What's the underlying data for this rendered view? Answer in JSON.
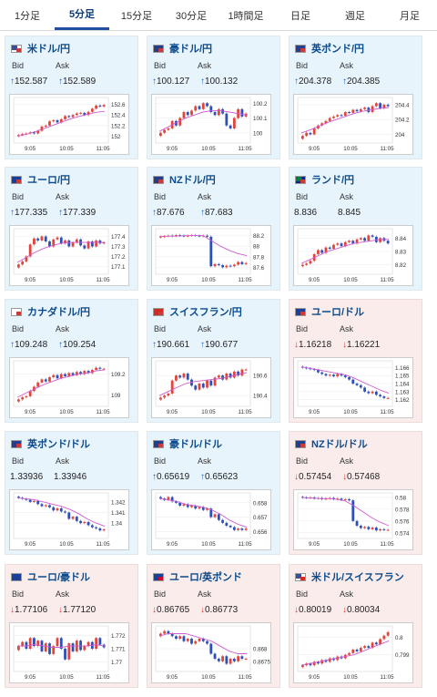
{
  "tabs": [
    "1分足",
    "5分足",
    "15分足",
    "30分足",
    "1時間足",
    "日足",
    "週足",
    "月足"
  ],
  "active_tab": 1,
  "colors": {
    "up_arrow": "#1f5fc4",
    "down_arrow": "#d43a3a",
    "bull_candle": "#e0453b",
    "bear_candle": "#2d4fb8",
    "moving_average": "#d05cd0",
    "pair_title": "#0b4a8b"
  },
  "bid_label": "Bid",
  "ask_label": "Ask",
  "cards": [
    {
      "pair": "米ドル/円",
      "flags": [
        "usa",
        "japan"
      ],
      "dir": "up",
      "arrow": "↑",
      "bid": "152.587",
      "ask": "152.589",
      "chart_data": {
        "type": "candlestick",
        "x_ticks": [
          "9:05",
          "10:05",
          "11:05"
        ],
        "y_ticks": [
          "152.6",
          "152.4",
          "152.2",
          "152"
        ],
        "ylim": [
          151.92,
          152.68
        ],
        "close": [
          152.02,
          152.04,
          152.05,
          152.07,
          152.05,
          152.1,
          152.18,
          152.2,
          152.28,
          152.3,
          152.26,
          152.32,
          152.38,
          152.36,
          152.4,
          152.43,
          152.44,
          152.4,
          152.46,
          152.52,
          152.58,
          152.56,
          152.59
        ],
        "ma": [
          152.0,
          152.03,
          152.08,
          152.14,
          152.2,
          152.26,
          152.32,
          152.37,
          152.41,
          152.45,
          152.47
        ]
      }
    },
    {
      "pair": "豪ドル/円",
      "flags": [
        "australia",
        "japan"
      ],
      "dir": "up",
      "arrow": "↑",
      "bid": "100.127",
      "ask": "100.132",
      "chart_data": {
        "type": "candlestick",
        "x_ticks": [
          "9:05",
          "10:05",
          "11:05"
        ],
        "y_ticks": [
          "100.2",
          "100.1",
          "100"
        ],
        "ylim": [
          99.95,
          100.22
        ],
        "close": [
          100.0,
          100.02,
          100.03,
          100.08,
          100.05,
          100.1,
          100.14,
          100.12,
          100.15,
          100.18,
          100.16,
          100.2,
          100.18,
          100.14,
          100.12,
          100.16,
          100.13,
          100.05,
          100.03,
          100.1,
          100.16,
          100.11,
          100.13
        ],
        "ma": [
          100.01,
          100.04,
          100.07,
          100.1,
          100.12,
          100.14,
          100.15,
          100.15,
          100.14,
          100.13,
          100.12
        ]
      }
    },
    {
      "pair": "英ポンド/円",
      "flags": [
        "uk",
        "japan"
      ],
      "dir": "up",
      "arrow": "↑",
      "bid": "204.378",
      "ask": "204.385",
      "chart_data": {
        "type": "candlestick",
        "x_ticks": [
          "9:05",
          "10:05",
          "11:05"
        ],
        "y_ticks": [
          "204.4",
          "204.2",
          "204"
        ],
        "ylim": [
          203.92,
          204.46
        ],
        "close": [
          203.98,
          204.02,
          204.0,
          204.08,
          204.12,
          204.15,
          204.18,
          204.22,
          204.24,
          204.26,
          204.25,
          204.3,
          204.29,
          204.33,
          204.31,
          204.34,
          204.36,
          204.3,
          204.38,
          204.42,
          204.35,
          204.4,
          204.38
        ],
        "ma": [
          204.02,
          204.06,
          204.11,
          204.16,
          204.2,
          204.24,
          204.28,
          204.31,
          204.33,
          204.35,
          204.36
        ]
      }
    },
    {
      "pair": "ユーロ/円",
      "flags": [
        "eu",
        "japan"
      ],
      "dir": "up",
      "arrow": "↑",
      "bid": "177.335",
      "ask": "177.339",
      "chart_data": {
        "type": "candlestick",
        "x_ticks": [
          "9:05",
          "10:05",
          "11:05"
        ],
        "y_ticks": [
          "177.4",
          "177.3",
          "177.2",
          "177.1"
        ],
        "ylim": [
          177.05,
          177.45
        ],
        "close": [
          177.12,
          177.15,
          177.2,
          177.32,
          177.38,
          177.36,
          177.4,
          177.35,
          177.3,
          177.37,
          177.39,
          177.33,
          177.36,
          177.3,
          177.34,
          177.37,
          177.31,
          177.28,
          177.35,
          177.3,
          177.36,
          177.33,
          177.34
        ],
        "ma": [
          177.14,
          177.19,
          177.24,
          177.28,
          177.31,
          177.33,
          177.34,
          177.34,
          177.34,
          177.34,
          177.34
        ]
      }
    },
    {
      "pair": "NZドル/円",
      "flags": [
        "nz",
        "japan"
      ],
      "dir": "up",
      "arrow": "↑",
      "bid": "87.676",
      "ask": "87.683",
      "chart_data": {
        "type": "candlestick",
        "x_ticks": [
          "9:05",
          "10:05",
          "11:05"
        ],
        "y_ticks": [
          "88.2",
          "88",
          "87.8",
          "87.6"
        ],
        "ylim": [
          87.52,
          88.28
        ],
        "close": [
          88.18,
          88.19,
          88.2,
          88.19,
          88.21,
          88.2,
          88.19,
          88.2,
          88.21,
          88.2,
          88.19,
          88.2,
          88.18,
          87.62,
          87.66,
          87.64,
          87.6,
          87.63,
          87.62,
          87.65,
          87.7,
          87.66,
          87.68
        ],
        "ma": [
          88.18,
          88.19,
          88.19,
          88.2,
          88.2,
          88.2,
          88.1,
          88.0,
          87.92,
          87.86,
          87.82
        ]
      }
    },
    {
      "pair": "ランド/円",
      "flags": [
        "za",
        "japan"
      ],
      "dir": "none",
      "arrow": "",
      "bid": "8.836",
      "ask": "8.845",
      "chart_data": {
        "type": "candlestick",
        "x_ticks": [
          "9:05",
          "10:05",
          "11:05"
        ],
        "y_ticks": [
          "8.84",
          "8.83",
          "8.82"
        ],
        "ylim": [
          8.815,
          8.845
        ],
        "close": [
          8.82,
          8.821,
          8.823,
          8.828,
          8.831,
          8.829,
          8.833,
          8.832,
          8.835,
          8.836,
          8.834,
          8.837,
          8.838,
          8.836,
          8.839,
          8.84,
          8.838,
          8.842,
          8.841,
          8.837,
          8.84,
          8.838,
          8.836
        ],
        "ma": [
          8.821,
          8.824,
          8.827,
          8.83,
          8.832,
          8.834,
          8.836,
          8.837,
          8.838,
          8.839,
          8.839
        ]
      }
    },
    {
      "pair": "カナダドル/円",
      "flags": [
        "canada",
        "japan"
      ],
      "dir": "up",
      "arrow": "↑",
      "bid": "109.248",
      "ask": "109.254",
      "chart_data": {
        "type": "candlestick",
        "x_ticks": [
          "9:05",
          "10:05",
          "11:05"
        ],
        "y_ticks": [
          "109.2",
          "109"
        ],
        "ylim": [
          108.92,
          109.3
        ],
        "close": [
          108.96,
          108.98,
          108.99,
          109.04,
          109.08,
          109.12,
          109.15,
          109.13,
          109.17,
          109.19,
          109.16,
          109.2,
          109.18,
          109.21,
          109.19,
          109.22,
          109.2,
          109.23,
          109.21,
          109.24,
          109.26,
          109.25,
          109.25
        ],
        "ma": [
          108.98,
          109.02,
          109.06,
          109.1,
          109.13,
          109.16,
          109.18,
          109.2,
          109.21,
          109.23,
          109.24
        ]
      }
    },
    {
      "pair": "スイスフラン/円",
      "flags": [
        "swiss",
        "japan"
      ],
      "dir": "up",
      "arrow": "↑",
      "bid": "190.661",
      "ask": "190.677",
      "chart_data": {
        "type": "candlestick",
        "x_ticks": [
          "9:05",
          "10:05",
          "11:05"
        ],
        "y_ticks": [
          "190.6",
          "190.4"
        ],
        "ylim": [
          190.32,
          190.72
        ],
        "close": [
          190.38,
          190.4,
          190.42,
          190.55,
          190.6,
          190.58,
          190.62,
          190.56,
          190.5,
          190.46,
          190.52,
          190.48,
          190.55,
          190.5,
          190.58,
          190.6,
          190.56,
          190.62,
          190.58,
          190.64,
          190.6,
          190.66,
          190.66
        ],
        "ma": [
          190.4,
          190.44,
          190.48,
          190.52,
          190.54,
          190.55,
          190.56,
          190.57,
          190.59,
          190.61,
          190.63
        ]
      }
    },
    {
      "pair": "ユーロ/ドル",
      "flags": [
        "eu",
        "usa"
      ],
      "dir": "down",
      "arrow": "↓",
      "bid": "1.16218",
      "ask": "1.16221",
      "chart_data": {
        "type": "candlestick",
        "x_ticks": [
          "9:05",
          "10:05",
          "11:05"
        ],
        "y_ticks": [
          "1.166",
          "1.165",
          "1.164",
          "1.163",
          "1.162"
        ],
        "ylim": [
          1.1615,
          1.1665
        ],
        "close": [
          1.166,
          1.1659,
          1.1658,
          1.1657,
          1.1654,
          1.1652,
          1.165,
          1.1651,
          1.1649,
          1.1652,
          1.165,
          1.1648,
          1.1645,
          1.164,
          1.1638,
          1.1635,
          1.163,
          1.1628,
          1.163,
          1.1626,
          1.1624,
          1.1622,
          1.1622
        ],
        "ma": [
          1.1661,
          1.1659,
          1.1657,
          1.1655,
          1.1653,
          1.1651,
          1.1647,
          1.1642,
          1.1637,
          1.1632,
          1.1628
        ]
      }
    },
    {
      "pair": "英ポンド/ドル",
      "flags": [
        "uk",
        "usa"
      ],
      "dir": "none",
      "arrow": "",
      "bid": "1.33936",
      "ask": "1.33946",
      "chart_data": {
        "type": "candlestick",
        "x_ticks": [
          "9:05",
          "10:05",
          "11:05"
        ],
        "y_ticks": [
          "1.342",
          "1.341",
          "1.34"
        ],
        "ylim": [
          1.3388,
          1.3426
        ],
        "close": [
          1.3424,
          1.3423,
          1.3422,
          1.342,
          1.3421,
          1.3418,
          1.3416,
          1.3417,
          1.3415,
          1.3412,
          1.3414,
          1.3411,
          1.341,
          1.3404,
          1.3406,
          1.3402,
          1.34,
          1.3401,
          1.3398,
          1.3396,
          1.3395,
          1.3393,
          1.3394
        ],
        "ma": [
          1.3424,
          1.3423,
          1.3422,
          1.342,
          1.3418,
          1.3416,
          1.3413,
          1.3409,
          1.3404,
          1.34,
          1.3397
        ]
      }
    },
    {
      "pair": "豪ドル/ドル",
      "flags": [
        "australia",
        "usa"
      ],
      "dir": "up",
      "arrow": "↑",
      "bid": "0.65619",
      "ask": "0.65623",
      "chart_data": {
        "type": "candlestick",
        "x_ticks": [
          "9:05",
          "10:05",
          "11:05"
        ],
        "y_ticks": [
          "0.658",
          "0.657",
          "0.656"
        ],
        "ylim": [
          0.6557,
          0.6585
        ],
        "close": [
          0.6583,
          0.6582,
          0.6584,
          0.6581,
          0.658,
          0.6578,
          0.6579,
          0.6577,
          0.6578,
          0.6576,
          0.6577,
          0.6575,
          0.6576,
          0.657,
          0.6572,
          0.6568,
          0.6566,
          0.6564,
          0.6563,
          0.6561,
          0.6562,
          0.6561,
          0.6562
        ],
        "ma": [
          0.6583,
          0.6582,
          0.6581,
          0.6579,
          0.6578,
          0.6577,
          0.6575,
          0.6572,
          0.6568,
          0.6565,
          0.6563
        ]
      }
    },
    {
      "pair": "NZドル/ドル",
      "flags": [
        "nz",
        "usa"
      ],
      "dir": "down",
      "arrow": "↓",
      "bid": "0.57454",
      "ask": "0.57468",
      "chart_data": {
        "type": "candlestick",
        "x_ticks": [
          "9:05",
          "10:05",
          "11:05"
        ],
        "y_ticks": [
          "0.58",
          "0.578",
          "0.576",
          "0.574"
        ],
        "ylim": [
          0.5735,
          0.5803
        ],
        "close": [
          0.58,
          0.5799,
          0.58,
          0.5798,
          0.5799,
          0.5797,
          0.5798,
          0.5799,
          0.5797,
          0.5798,
          0.5796,
          0.5797,
          0.5795,
          0.576,
          0.5752,
          0.5748,
          0.575,
          0.5746,
          0.5749,
          0.5744,
          0.5746,
          0.5745,
          0.5745
        ],
        "ma": [
          0.58,
          0.5799,
          0.5798,
          0.5798,
          0.5797,
          0.5794,
          0.5786,
          0.5776,
          0.5766,
          0.5758,
          0.5752
        ]
      }
    },
    {
      "pair": "ユーロ/豪ドル",
      "flags": [
        "eu",
        "australia"
      ],
      "dir": "down",
      "arrow": "↓",
      "bid": "1.77106",
      "ask": "1.77120",
      "chart_data": {
        "type": "candlestick",
        "x_ticks": [
          "9:05",
          "10:05",
          "11:05"
        ],
        "y_ticks": [
          "1.772",
          "1.771",
          "1.77"
        ],
        "ylim": [
          1.7695,
          1.7725
        ],
        "close": [
          1.7712,
          1.7715,
          1.771,
          1.7718,
          1.7712,
          1.7716,
          1.7708,
          1.7714,
          1.7706,
          1.7712,
          1.7718,
          1.771,
          1.7702,
          1.7714,
          1.7708,
          1.7716,
          1.7709,
          1.7712,
          1.7715,
          1.771,
          1.7718,
          1.7713,
          1.7711
        ],
        "ma": [
          1.7712,
          1.7712,
          1.7713,
          1.7712,
          1.7711,
          1.7711,
          1.7712,
          1.7712,
          1.7712,
          1.7713,
          1.7712
        ]
      }
    },
    {
      "pair": "ユーロ/英ポンド",
      "flags": [
        "eu",
        "uk"
      ],
      "dir": "down",
      "arrow": "↓",
      "bid": "0.86765",
      "ask": "0.86773",
      "chart_data": {
        "type": "candlestick",
        "x_ticks": [
          "9:05",
          "10:05",
          "11:05"
        ],
        "y_ticks": [
          "0.868",
          "0.8675"
        ],
        "ylim": [
          0.8672,
          0.8688
        ],
        "close": [
          0.8686,
          0.8687,
          0.8686,
          0.8685,
          0.8684,
          0.8685,
          0.8683,
          0.8684,
          0.8682,
          0.8683,
          0.8684,
          0.8683,
          0.8682,
          0.8678,
          0.8676,
          0.8675,
          0.8677,
          0.8674,
          0.8676,
          0.8675,
          0.8677,
          0.8676,
          0.8676
        ],
        "ma": [
          0.8685,
          0.8686,
          0.8686,
          0.8686,
          0.8685,
          0.8684,
          0.8683,
          0.8681,
          0.8679,
          0.8678,
          0.8678
        ]
      }
    },
    {
      "pair": "米ドル/スイスフラン",
      "flags": [
        "usa",
        "swiss"
      ],
      "dir": "down",
      "arrow": "↓",
      "bid": "0.80019",
      "ask": "0.80034",
      "chart_data": {
        "type": "candlestick",
        "x_ticks": [
          "9:05",
          "10:05",
          "11:05"
        ],
        "y_ticks": [
          "0.8",
          "0.799"
        ],
        "ylim": [
          0.7982,
          0.8005
        ],
        "close": [
          0.7984,
          0.7985,
          0.7984,
          0.7986,
          0.7985,
          0.7987,
          0.7986,
          0.7988,
          0.7987,
          0.7989,
          0.7988,
          0.799,
          0.7991,
          0.7993,
          0.7992,
          0.7994,
          0.7995,
          0.7994,
          0.7997,
          0.7996,
          0.7999,
          0.8001,
          0.8003
        ],
        "ma": [
          0.7984,
          0.7985,
          0.7986,
          0.7987,
          0.7988,
          0.7989,
          0.799,
          0.7992,
          0.7994,
          0.7996,
          0.7998
        ]
      }
    }
  ]
}
